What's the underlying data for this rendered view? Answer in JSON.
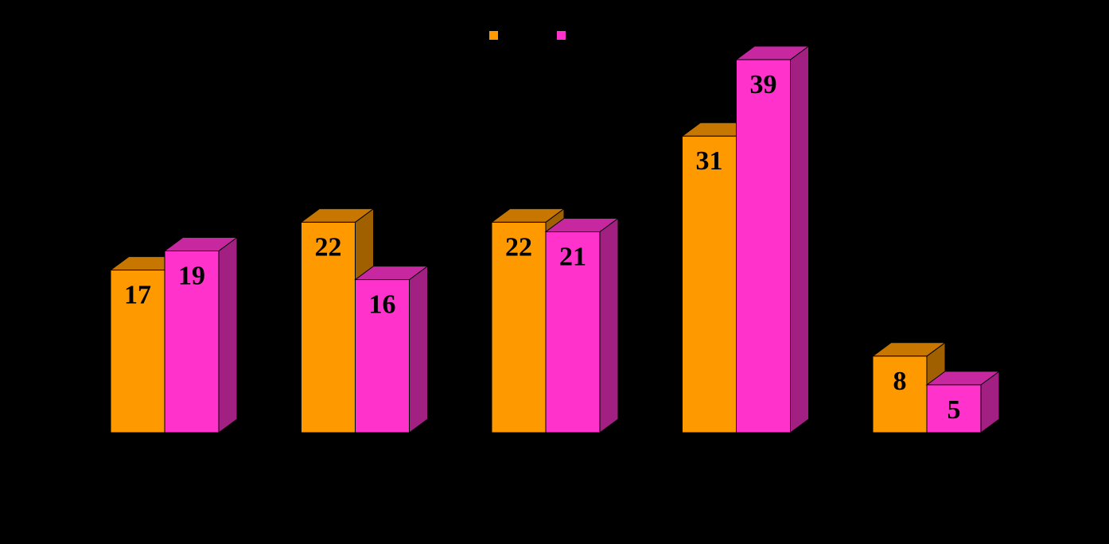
{
  "chart_data": {
    "type": "bar3d",
    "categories": [
      null,
      null,
      null,
      null,
      null
    ],
    "series": [
      {
        "color": "#FF9900",
        "values": [
          17,
          22,
          22,
          31,
          8
        ]
      },
      {
        "color": "#FF33CC",
        "values": [
          19,
          16,
          21,
          39,
          5
        ]
      }
    ]
  }
}
